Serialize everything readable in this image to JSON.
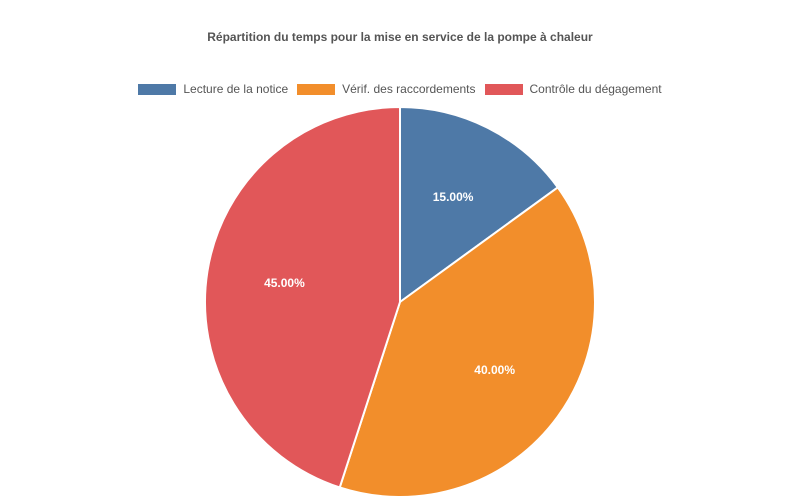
{
  "chart_data": {
    "type": "pie",
    "title": "Répartition du temps pour la mise en service de la pompe à chaleur",
    "legend_position": "top",
    "slices": [
      {
        "name": "Lecture de la notice",
        "value": 15,
        "label": "15.00%",
        "color": "#4e79a7"
      },
      {
        "name": "Vérif. des raccordements",
        "value": 40,
        "label": "40.00%",
        "color": "#f28e2b"
      },
      {
        "name": "Contrôle du dégagement",
        "value": 45,
        "label": "45.00%",
        "color": "#e15759"
      }
    ]
  }
}
